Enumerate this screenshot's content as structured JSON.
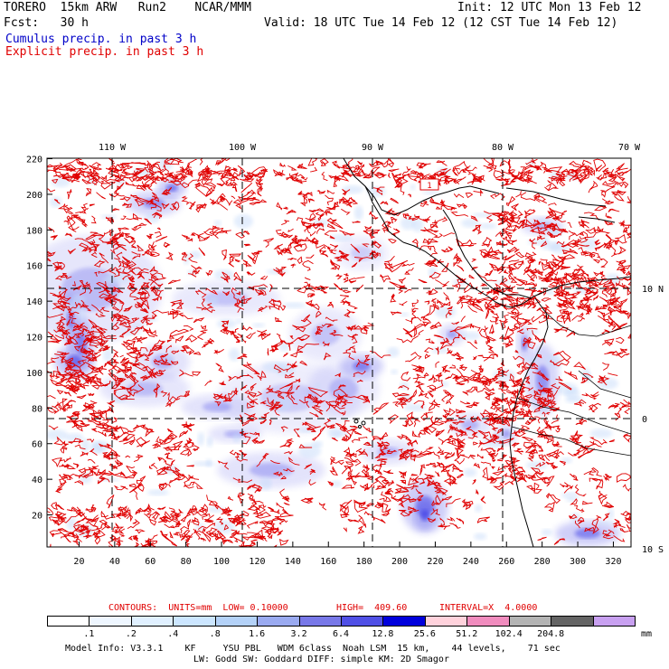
{
  "header": {
    "model": "TORERO  15km ARW   Run2    NCAR/MMM",
    "init": "Init: 12 UTC Mon 13 Feb 12",
    "fcst": "Fcst:   30 h",
    "valid": "Valid: 18 UTC Tue 14 Feb 12 (12 CST Tue 14 Feb 12)",
    "legend_cumulus": "Cumulus precip. in past 3 h",
    "legend_explicit": "Explicit precip. in past 3 h"
  },
  "colors": {
    "cumulus_text": "#0000c8",
    "explicit_text": "#e00000",
    "contour": "#e00000",
    "precip_fill": "#5a5af0",
    "coast": "#000000"
  },
  "map": {
    "top_lon_labels": [
      "110 W",
      "100 W",
      "90 W",
      "80 W",
      "70 W"
    ],
    "right_lat_labels": [
      "10 N",
      "0",
      "10 S"
    ],
    "y_ticks": [
      "220",
      "200",
      "180",
      "160",
      "140",
      "120",
      "100",
      "80",
      "60",
      "40",
      "20"
    ],
    "x_ticks": [
      "20",
      "40",
      "60",
      "80",
      "100",
      "120",
      "140",
      "160",
      "180",
      "200",
      "220",
      "240",
      "260",
      "280",
      "300",
      "320"
    ],
    "highlight_label": "1"
  },
  "contours_info": {
    "units": "CONTOURS:  UNITS=mm  LOW= 0.10000",
    "high": "HIGH=  409.60",
    "interval": "INTERVAL=X  4.0000"
  },
  "colorbar": {
    "colors": [
      "#ffffff",
      "#eef6ff",
      "#e0f0ff",
      "#cce6ff",
      "#b4d2f8",
      "#9aaaf0",
      "#7878e8",
      "#5050e6",
      "#0000dc",
      "#ffd2dc",
      "#f08cbe",
      "#b4b4b4",
      "#646464",
      "#c8a0f0"
    ],
    "labels": [
      ".1",
      ".2",
      ".4",
      ".8",
      "1.6",
      "3.2",
      "6.4",
      "12.8",
      "25.6",
      "51.2",
      "102.4",
      "204.8"
    ],
    "unit": "mm"
  },
  "footer": {
    "line1": "Model Info: V3.3.1    KF     YSU PBL   WDM 6class  Noah LSM  15 km,    44 levels,    71 sec",
    "line2": "LW: Godd SW: Goddard DIFF: simple KM: 2D Smagor"
  }
}
